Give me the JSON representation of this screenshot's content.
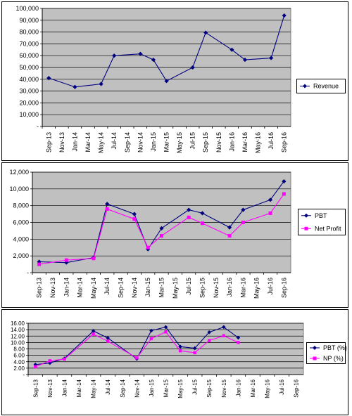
{
  "colors": {
    "series1": "#000080",
    "series2": "#FF00FF",
    "plot_bg": "#C0C0C0",
    "grid": "#000000"
  },
  "chart_data": [
    {
      "type": "line",
      "x": [
        "Sep-13",
        "Nov-13",
        "Jan-14",
        "Mar-14",
        "May-14",
        "Jul-14",
        "Sep-14",
        "Nov-14",
        "Jan-15",
        "Mar-15",
        "May-15",
        "Jul-15",
        "Sep-15",
        "Nov-15",
        "Jan-16",
        "Mar-16",
        "May-16",
        "Jul-16",
        "Sep-16"
      ],
      "points": [
        {
          "x": "Sep-13",
          "y": 41000
        },
        {
          "x": "Jan-14",
          "y": 33500
        },
        {
          "x": "May-14",
          "y": 36000
        },
        {
          "x": "Jul-14",
          "y": 60000
        },
        {
          "x": "Nov-14",
          "y": 61500
        },
        {
          "x": "Jan-15",
          "y": 56500
        },
        {
          "x": "Mar-15",
          "y": 38500
        },
        {
          "x": "Jul-15",
          "y": 50000
        },
        {
          "x": "Sep-15",
          "y": 79500
        },
        {
          "x": "Jan-16",
          "y": 65000
        },
        {
          "x": "Mar-16",
          "y": 56500
        },
        {
          "x": "Jul-16",
          "y": 58000
        },
        {
          "x": "Sep-16",
          "y": 94000
        }
      ],
      "series": [
        {
          "name": "Revenue"
        }
      ],
      "yticks": [
        "-",
        "10,000",
        "20,000",
        "30,000",
        "40,000",
        "50,000",
        "60,000",
        "70,000",
        "80,000",
        "90,000",
        "100,000"
      ],
      "ylim": [
        0,
        100000
      ],
      "grid": true,
      "legend": "right"
    },
    {
      "type": "line",
      "x": [
        "Sep-13",
        "Nov-13",
        "Jan-14",
        "Mar-14",
        "May-14",
        "Jul-14",
        "Sep-14",
        "Nov-14",
        "Jan-15",
        "Mar-15",
        "May-15",
        "Jul-15",
        "Sep-15",
        "Nov-15",
        "Jan-16",
        "Mar-16",
        "May-16",
        "Jul-16",
        "Sep-16"
      ],
      "series": [
        {
          "name": "PBT",
          "points": [
            {
              "x": "Sep-13",
              "y": 1300
            },
            {
              "x": "Jan-14",
              "y": 1200
            },
            {
              "x": "May-14",
              "y": 1800
            },
            {
              "x": "Jul-14",
              "y": 8200
            },
            {
              "x": "Nov-14",
              "y": 7000
            },
            {
              "x": "Jan-15",
              "y": 2800
            },
            {
              "x": "Mar-15",
              "y": 5300
            },
            {
              "x": "Jul-15",
              "y": 7500
            },
            {
              "x": "Sep-15",
              "y": 7100
            },
            {
              "x": "Jan-16",
              "y": 5400
            },
            {
              "x": "Mar-16",
              "y": 7500
            },
            {
              "x": "Jul-16",
              "y": 8700
            },
            {
              "x": "Sep-16",
              "y": 10900
            }
          ]
        },
        {
          "name": "Net Profit",
          "points": [
            {
              "x": "Sep-13",
              "y": 1000
            },
            {
              "x": "Jan-14",
              "y": 1500
            },
            {
              "x": "May-14",
              "y": 1700
            },
            {
              "x": "Jul-14",
              "y": 7600
            },
            {
              "x": "Nov-14",
              "y": 6400
            },
            {
              "x": "Jan-15",
              "y": 3000
            },
            {
              "x": "Mar-15",
              "y": 4400
            },
            {
              "x": "Jul-15",
              "y": 6600
            },
            {
              "x": "Sep-15",
              "y": 5900
            },
            {
              "x": "Jan-16",
              "y": 4400
            },
            {
              "x": "Mar-16",
              "y": 6000
            },
            {
              "x": "Jul-16",
              "y": 7100
            },
            {
              "x": "Sep-16",
              "y": 9400
            }
          ]
        }
      ],
      "yticks": [
        "-",
        "2,000",
        "4,000",
        "6,000",
        "8,000",
        "10,000",
        "12,000"
      ],
      "ylim": [
        0,
        12000
      ],
      "grid": true,
      "legend": "right"
    },
    {
      "type": "line",
      "x": [
        "Sep-13",
        "Nov-13",
        "Jan-14",
        "Mar-14",
        "May-14",
        "Jul-14",
        "Sep-14",
        "Nov-14",
        "Jan-15",
        "Mar-15",
        "May-15",
        "Jul-15",
        "Sep-15",
        "Nov-15",
        "Jan-16",
        "Mar-16",
        "May-16",
        "Jul-16",
        "Sep-16"
      ],
      "series": [
        {
          "name": "PBT (%)",
          "points": [
            {
              "x": "Sep-13",
              "y": 3.1
            },
            {
              "x": "Nov-13",
              "y": 3.6
            },
            {
              "x": "Jan-14",
              "y": 5.0
            },
            {
              "x": "May-14",
              "y": 13.6
            },
            {
              "x": "Jul-14",
              "y": 11.4
            },
            {
              "x": "Nov-14",
              "y": 4.9
            },
            {
              "x": "Jan-15",
              "y": 13.7
            },
            {
              "x": "Mar-15",
              "y": 14.8
            },
            {
              "x": "May-15",
              "y": 8.7
            },
            {
              "x": "Jul-15",
              "y": 8.2
            },
            {
              "x": "Sep-15",
              "y": 13.2
            },
            {
              "x": "Nov-15",
              "y": 14.8
            },
            {
              "x": "Jan-16",
              "y": 11.5
            }
          ]
        },
        {
          "name": "NP (%)",
          "points": [
            {
              "x": "Sep-13",
              "y": 2.4
            },
            {
              "x": "Nov-13",
              "y": 4.3
            },
            {
              "x": "Jan-14",
              "y": 4.8
            },
            {
              "x": "May-14",
              "y": 12.6
            },
            {
              "x": "Jul-14",
              "y": 10.4
            },
            {
              "x": "Nov-14",
              "y": 5.2
            },
            {
              "x": "Jan-15",
              "y": 11.2
            },
            {
              "x": "Mar-15",
              "y": 13.3
            },
            {
              "x": "May-15",
              "y": 7.4
            },
            {
              "x": "Jul-15",
              "y": 6.8
            },
            {
              "x": "Sep-15",
              "y": 10.6
            },
            {
              "x": "Nov-15",
              "y": 12.1
            },
            {
              "x": "Jan-16",
              "y": 10.0
            }
          ]
        }
      ],
      "yticks": [
        "-",
        "2.00",
        "4.00",
        "6.00",
        "8.00",
        "10.00",
        "12.00",
        "14.00",
        "16.00"
      ],
      "ylim": [
        0,
        16
      ],
      "grid": true,
      "legend": "right"
    }
  ]
}
